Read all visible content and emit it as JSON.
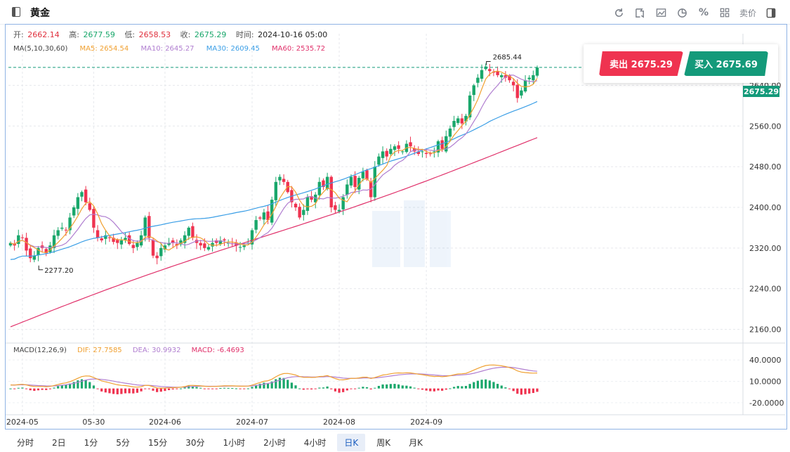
{
  "app": {
    "title": "黄金"
  },
  "toolbar": {
    "icons": [
      "refresh-icon",
      "draw-icon",
      "indicator-icon",
      "pie-icon",
      "percent-icon",
      "layout-icon"
    ],
    "sell_price_label": "卖价"
  },
  "ohlc": {
    "open_label": "开:",
    "open": "2662.14",
    "high_label": "高:",
    "high": "2677.59",
    "low_label": "低:",
    "low": "2658.53",
    "close_label": "收:",
    "close": "2675.29",
    "time_label": "时间:",
    "time": "2024-10-16 05:00"
  },
  "ma": {
    "label": "MA(5,10,30,60)",
    "ma5": "MA5: 2654.54",
    "ma10": "MA10: 2645.27",
    "ma30": "MA30: 2609.45",
    "ma60": "MA60: 2535.72"
  },
  "macd": {
    "label": "MACD(12,26,9)",
    "dif": "DIF: 27.7585",
    "dea": "DEA: 30.9932",
    "macd": "MACD: -6.4693"
  },
  "trade": {
    "sell": "卖出 2675.29",
    "buy": "买入 2675.69"
  },
  "periods": [
    "分时",
    "2日",
    "1分",
    "5分",
    "15分",
    "30分",
    "1小时",
    "2小时",
    "4小时",
    "日K",
    "周K",
    "月K"
  ],
  "active_period": "日K",
  "colors": {
    "up": "#19a76b",
    "down": "#ef3350",
    "ma5": "#f0a030",
    "ma10": "#b07ed0",
    "ma30": "#3a9ee6",
    "ma60": "#e0306a",
    "accent": "#149a7a"
  },
  "chart_data": {
    "type": "candlestick",
    "current_price": "2675.29",
    "max_label": "2685.44",
    "min_label": "2277.20",
    "y_ticks": [
      "2640.00",
      "2560.00",
      "2480.00",
      "2400.00",
      "2320.00",
      "2240.00",
      "2160.00"
    ],
    "y_tick_values": [
      2640,
      2560,
      2480,
      2400,
      2320,
      2240,
      2160
    ],
    "macd_ticks": [
      "40.0000",
      "10.0000",
      "-20.0000"
    ],
    "macd_tick_values": [
      40,
      10,
      -20
    ],
    "x_ticks": [
      "2024-05",
      "05-30",
      "2024-06",
      "2024-07",
      "2024-08",
      "2024-09"
    ],
    "x_tick_index": [
      3,
      21,
      39,
      61,
      83,
      105
    ],
    "close": [
      2330,
      2325,
      2345,
      2340,
      2315,
      2300,
      2305,
      2320,
      2320,
      2310,
      2325,
      2345,
      2355,
      2360,
      2355,
      2380,
      2400,
      2420,
      2430,
      2410,
      2395,
      2360,
      2340,
      2335,
      2345,
      2340,
      2332,
      2330,
      2335,
      2340,
      2328,
      2320,
      2330,
      2345,
      2380,
      2340,
      2305,
      2300,
      2320,
      2325,
      2330,
      2330,
      2325,
      2335,
      2345,
      2360,
      2340,
      2330,
      2325,
      2320,
      2322,
      2330,
      2330,
      2335,
      2335,
      2330,
      2328,
      2325,
      2322,
      2325,
      2330,
      2355,
      2375,
      2378,
      2390,
      2375,
      2415,
      2450,
      2460,
      2450,
      2430,
      2410,
      2400,
      2380,
      2395,
      2420,
      2415,
      2425,
      2450,
      2440,
      2460,
      2400,
      2395,
      2395,
      2420,
      2445,
      2460,
      2440,
      2458,
      2470,
      2455,
      2420,
      2480,
      2500,
      2510,
      2500,
      2515,
      2520,
      2515,
      2510,
      2525,
      2520,
      2510,
      2505,
      2510,
      2505,
      2505,
      2510,
      2530,
      2515,
      2540,
      2555,
      2570,
      2575,
      2565,
      2580,
      2620,
      2640,
      2655,
      2670,
      2677,
      2668,
      2665,
      2660,
      2660,
      2655,
      2650,
      2640,
      2615,
      2630,
      2650,
      2655,
      2660,
      2675
    ],
    "ma30_end": "2609.45",
    "ma60_end": "2535.72"
  }
}
